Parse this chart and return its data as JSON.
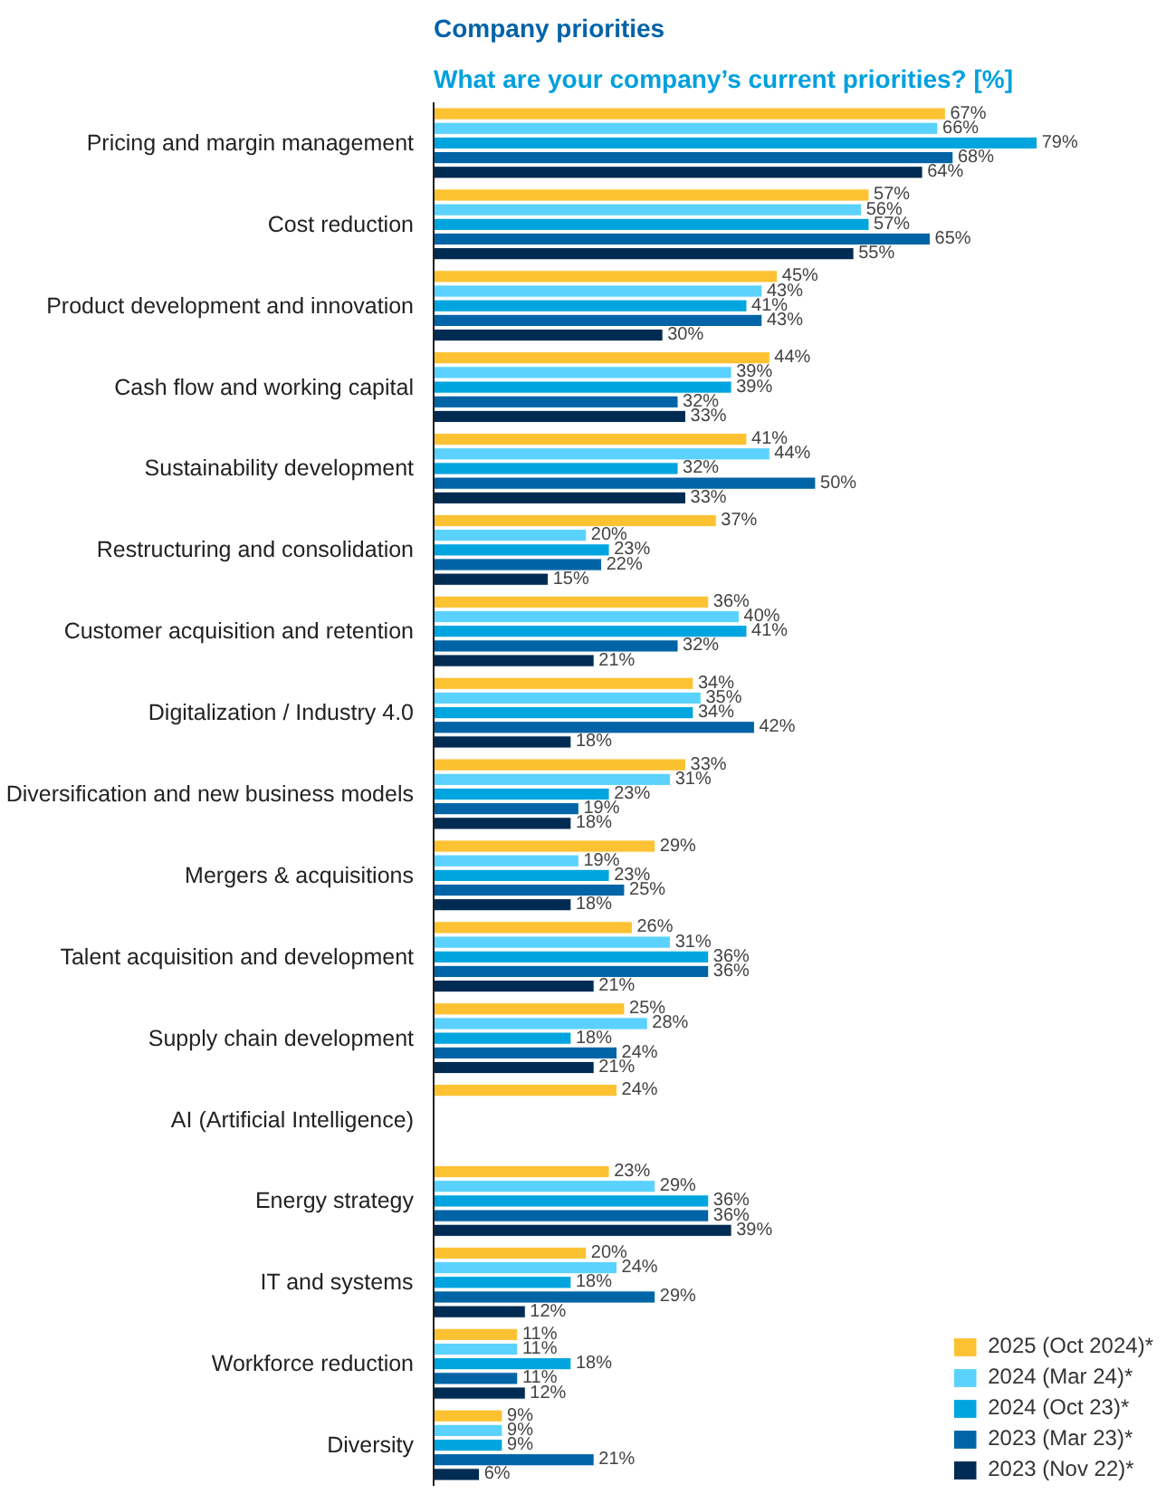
{
  "chart_data": {
    "type": "bar",
    "orientation": "horizontal",
    "title": "Company priorities",
    "subtitle": "What are your company’s current priorities? [%]",
    "categories": [
      "Pricing and margin management",
      "Cost reduction",
      "Product development and innovation",
      "Cash flow and working capital",
      "Sustainability development",
      "Restructuring and consolidation",
      "Customer acquisition and retention",
      "Digitalization / Industry 4.0",
      "Diversification and new business models",
      "Mergers & acquisitions",
      "Talent acquisition and development",
      "Supply chain development",
      "AI (Artificial Intelligence)",
      "Energy strategy",
      "IT and systems",
      "Workforce reduction",
      "Diversity"
    ],
    "series": [
      {
        "name": "2025 (Oct 2024)*",
        "color": "#fdc232",
        "values": [
          67,
          57,
          45,
          44,
          41,
          37,
          36,
          34,
          33,
          29,
          26,
          25,
          24,
          23,
          20,
          11,
          9
        ],
        "value_labels": [
          "67%",
          "57%",
          "45%",
          "44%",
          "41%",
          "37%",
          "36%",
          "34%",
          "33%",
          "29%",
          "26%",
          "25%",
          "24%",
          "23%",
          "20%",
          "11%",
          "9%"
        ]
      },
      {
        "name": "2024 (Mar 24)*",
        "color": "#5ad2fd",
        "values": [
          66,
          56,
          43,
          39,
          44,
          20,
          40,
          35,
          31,
          19,
          31,
          28,
          null,
          29,
          24,
          11,
          9
        ],
        "value_labels": [
          "66%",
          "56%",
          "43%",
          "39%",
          "44%",
          "20%",
          "40%",
          "35%",
          "31%",
          "19%",
          "31%",
          "28%",
          null,
          "29%",
          "24%",
          "11%",
          "9%"
        ]
      },
      {
        "name": "2024 (Oct 23)*",
        "color": "#00a5df",
        "values": [
          79,
          57,
          41,
          39,
          32,
          23,
          41,
          34,
          23,
          23,
          36,
          18,
          null,
          36,
          18,
          18,
          9
        ],
        "value_labels": [
          "79%",
          "57%",
          "41%",
          "39%",
          "32%",
          "23%",
          "41%",
          "34%",
          "23%",
          "23%",
          "36%",
          "18%",
          null,
          "36%",
          "18%",
          "18%",
          "9%"
        ]
      },
      {
        "name": "2023 (Mar 23)*",
        "color": "#0064a6",
        "values": [
          68,
          65,
          43,
          32,
          50,
          22,
          32,
          42,
          19,
          25,
          36,
          24,
          null,
          36,
          29,
          11,
          21
        ],
        "value_labels": [
          "68%",
          "65%",
          "43%",
          "32%",
          "50%",
          "22%",
          "32%",
          "42%",
          "19%",
          "25%",
          "36%",
          "24%",
          null,
          "36%",
          "29%",
          "11%",
          "21%"
        ]
      },
      {
        "name": "2023 (Nov 22)*",
        "color": "#002b52",
        "values": [
          64,
          55,
          30,
          33,
          33,
          15,
          21,
          18,
          18,
          18,
          21,
          21,
          null,
          39,
          12,
          12,
          6
        ],
        "value_labels": [
          "64%",
          "55%",
          "30%",
          "33%",
          "33%",
          "15%",
          "21%",
          "18%",
          "18%",
          "18%",
          "21%",
          "21%",
          null,
          "39%",
          "12%",
          "12%",
          "6%"
        ]
      }
    ],
    "legend": "bottom right",
    "grid": false
  }
}
